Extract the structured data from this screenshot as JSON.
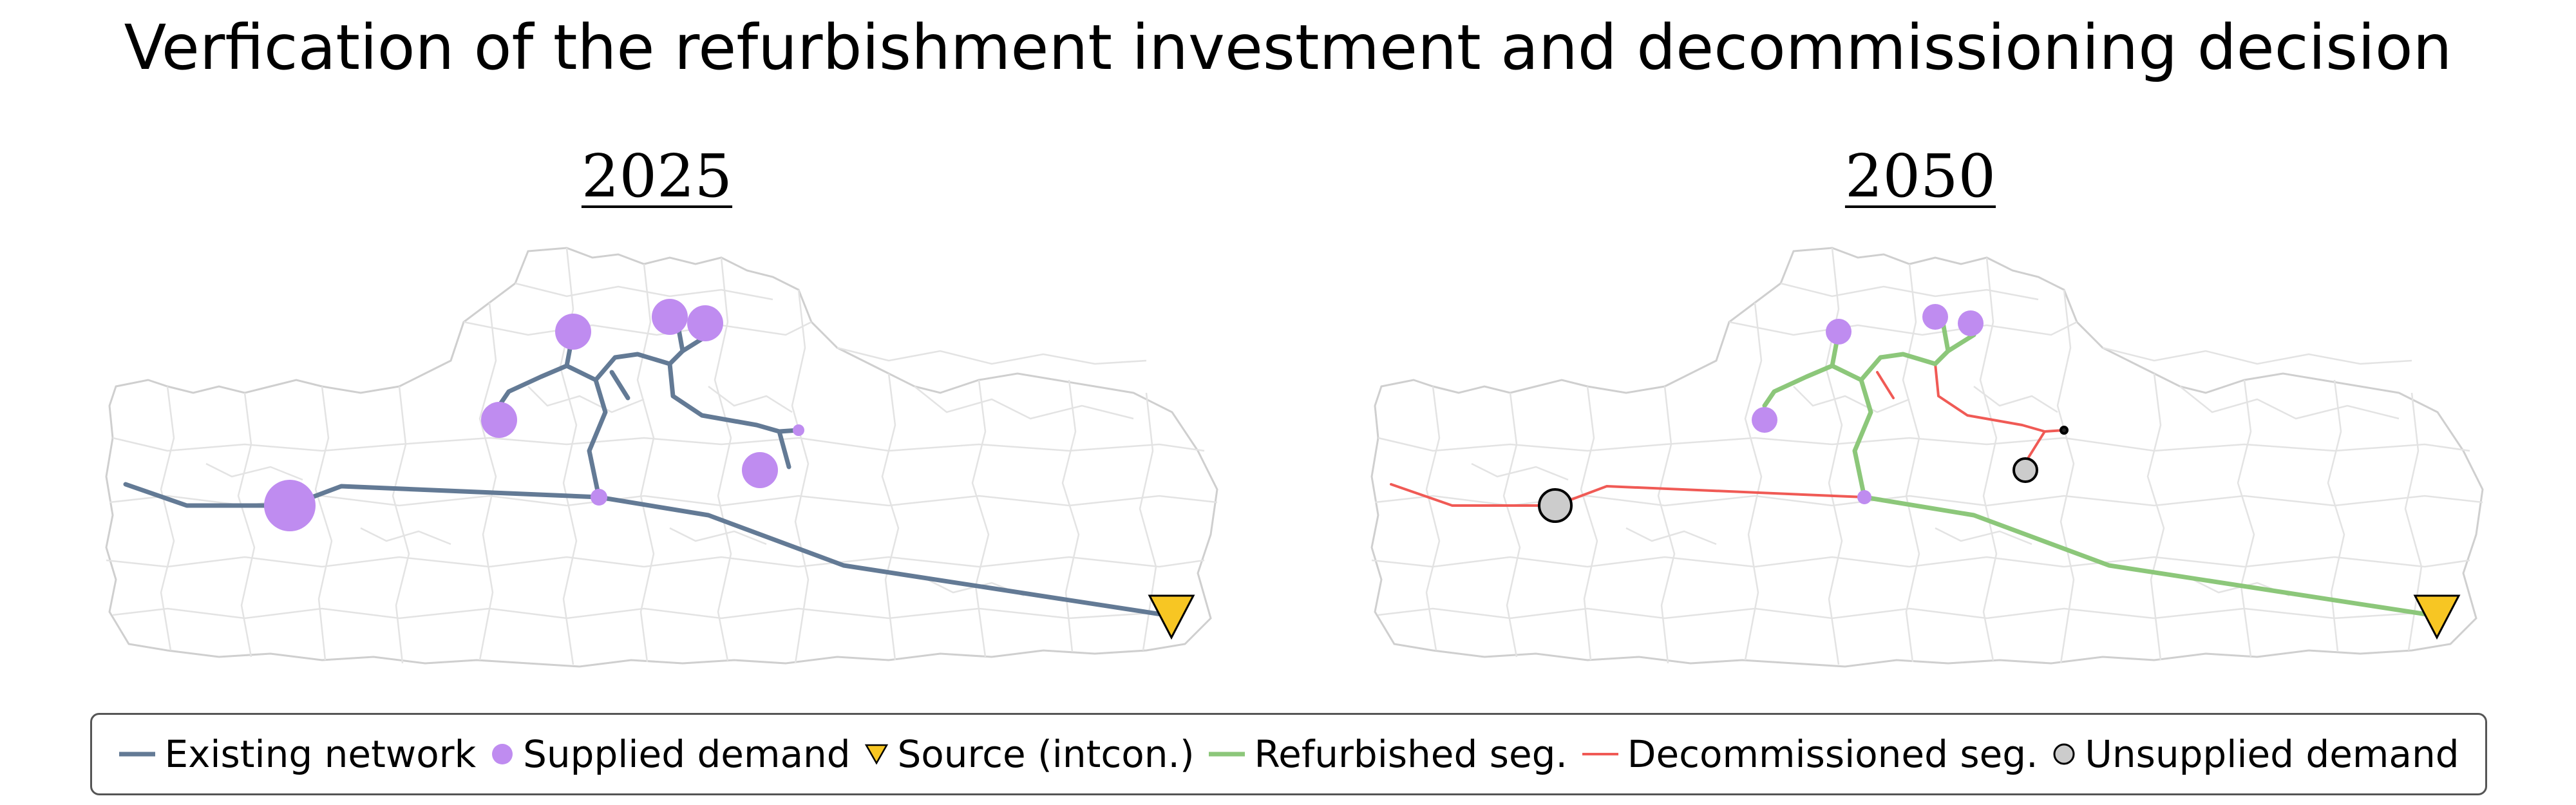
{
  "title": "Verfication of the refurbishment investment and decommissioning decision",
  "panels": [
    {
      "label": "2025"
    },
    {
      "label": "2050"
    }
  ],
  "legend": [
    {
      "label": "Existing network",
      "symbol": "line",
      "color": "#637a95"
    },
    {
      "label": "Supplied demand",
      "symbol": "circle",
      "color": "#bf8cf0"
    },
    {
      "label": "Source (intcon.)",
      "symbol": "triangle-down",
      "color": "#f7c623"
    },
    {
      "label": "Refurbished seg.",
      "symbol": "line",
      "color": "#8cc77a"
    },
    {
      "label": "Decommissioned seg.",
      "symbol": "line",
      "color": "#f05a55"
    },
    {
      "label": "Unsupplied demand",
      "symbol": "circle-outline",
      "color": "#cccccc"
    }
  ],
  "colors": {
    "existing": "#637a95",
    "supplied": "#bf8cf0",
    "source": "#f7c623",
    "refurbished": "#8cc77a",
    "decommissioned": "#f05a55",
    "unsupplied": "#cccccc",
    "boundary": "#dcdcdc"
  }
}
